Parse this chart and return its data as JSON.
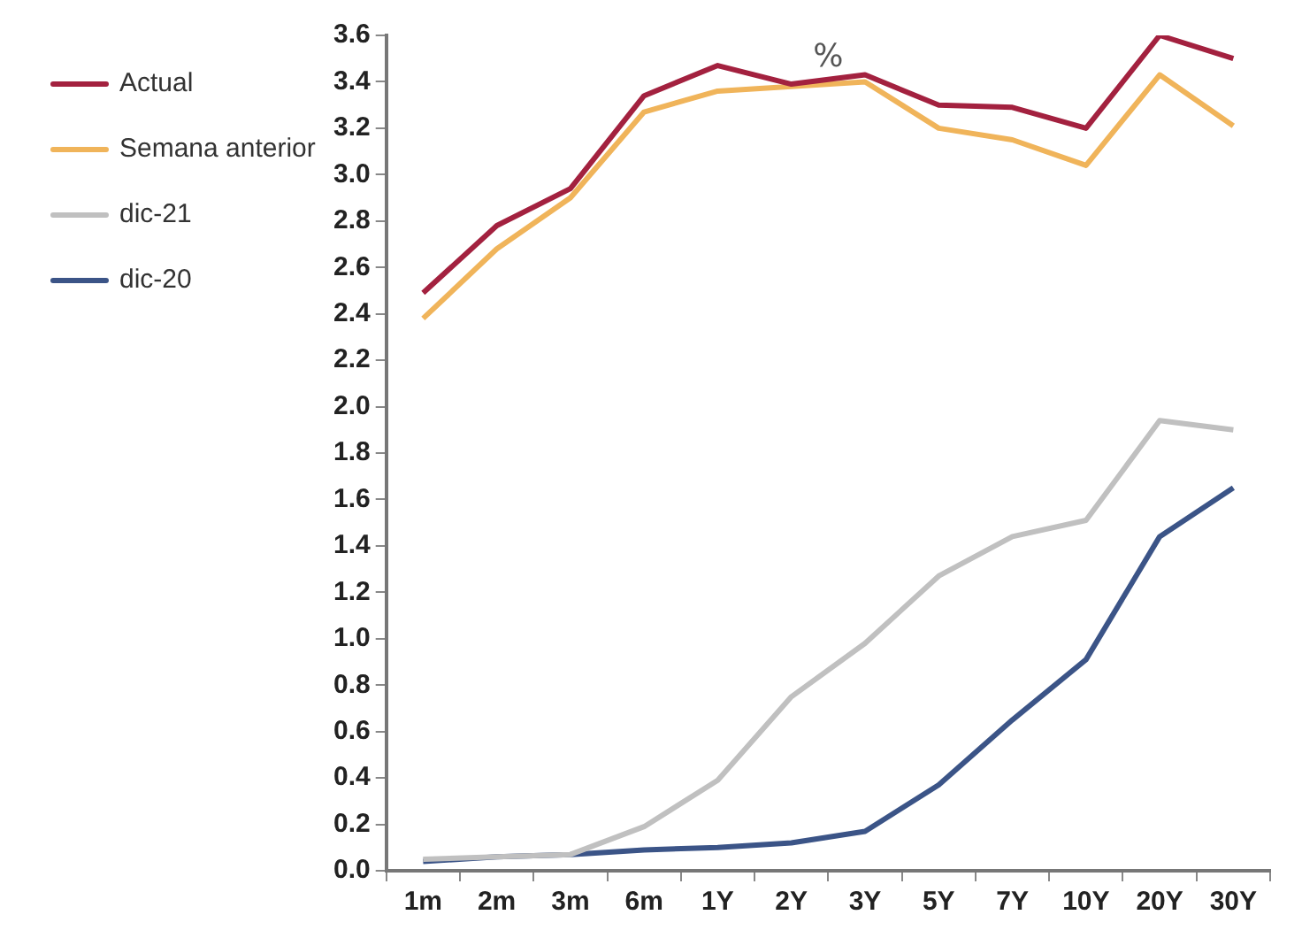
{
  "chart_data": {
    "type": "line",
    "annotations": [
      "%"
    ],
    "categories": [
      "1m",
      "2m",
      "3m",
      "6m",
      "1Y",
      "2Y",
      "3Y",
      "5Y",
      "7Y",
      "10Y",
      "20Y",
      "30Y"
    ],
    "series": [
      {
        "name": "Actual",
        "color": "#a3213f",
        "values": [
          2.49,
          2.78,
          2.94,
          3.34,
          3.47,
          3.39,
          3.43,
          3.3,
          3.29,
          3.2,
          3.6,
          3.5
        ]
      },
      {
        "name": "Semana anterior",
        "color": "#f0b45a",
        "values": [
          2.38,
          2.68,
          2.9,
          3.27,
          3.36,
          3.38,
          3.4,
          3.2,
          3.15,
          3.04,
          3.43,
          3.21
        ]
      },
      {
        "name": "dic-21",
        "color": "#c0c0c0",
        "values": [
          0.05,
          0.06,
          0.07,
          0.19,
          0.39,
          0.75,
          0.98,
          1.27,
          1.44,
          1.51,
          1.94,
          1.9
        ]
      },
      {
        "name": "dic-20",
        "color": "#3b5487",
        "values": [
          0.04,
          0.06,
          0.07,
          0.09,
          0.1,
          0.12,
          0.17,
          0.37,
          0.65,
          0.91,
          1.44,
          1.65
        ]
      }
    ],
    "ylim": [
      0,
      3.6
    ],
    "yticks": [
      {
        "value": 0,
        "label": "0.0"
      },
      0.2,
      0.4,
      0.6,
      0.8,
      {
        "value": 1,
        "label": "1.0"
      },
      1.2,
      1.4,
      1.6,
      1.8,
      {
        "value": 2,
        "label": "2.0"
      },
      2.2,
      2.4,
      2.6,
      2.8,
      {
        "value": 3,
        "label": "3.0"
      },
      3.2,
      3.4,
      3.6
    ],
    "grid": false,
    "legend": "left",
    "marker": "none",
    "line_style": "solid"
  }
}
